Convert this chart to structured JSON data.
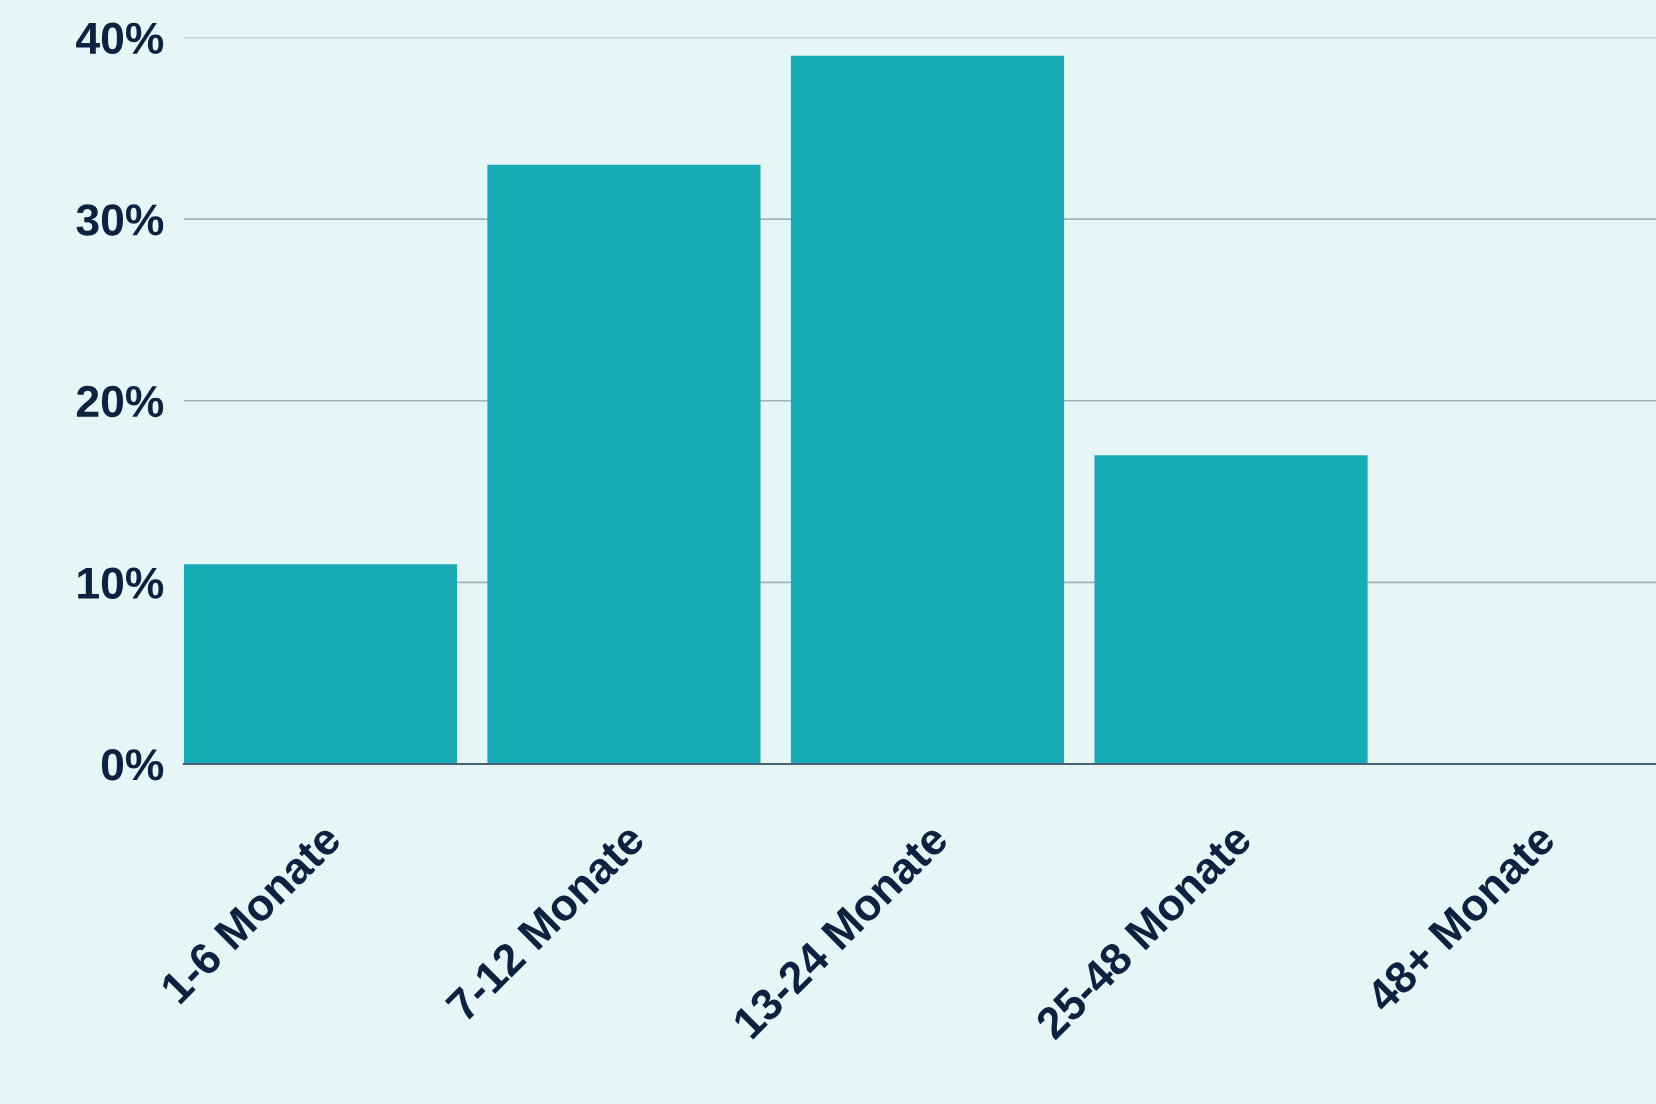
{
  "chart_data": {
    "type": "bar",
    "categories": [
      "1-6 Monate",
      "7-12 Monate",
      "13-24 Monate",
      "25-48 Monate",
      "48+ Monate"
    ],
    "values": [
      11,
      33,
      39,
      17,
      0
    ],
    "color": "#17abb5",
    "ylim": [
      0,
      40
    ],
    "yticks": [
      {
        "value": 0,
        "label": "0%"
      },
      {
        "value": 10,
        "label": "10%"
      },
      {
        "value": 20,
        "label": "20%"
      },
      {
        "value": 30,
        "label": "30%"
      },
      {
        "value": 40,
        "label": "40%"
      }
    ],
    "grid": "y"
  }
}
